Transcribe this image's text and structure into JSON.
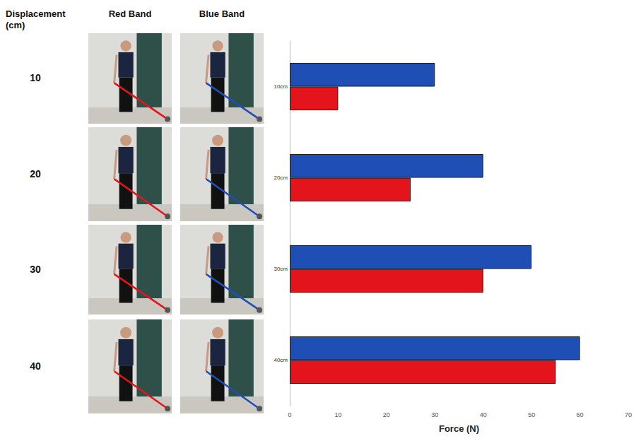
{
  "chart_data": {
    "type": "bar",
    "orientation": "horizontal",
    "categories": [
      "10cm",
      "20cm",
      "30cm",
      "40cm"
    ],
    "series": [
      {
        "name": "Blue Band",
        "color": "#1f4fb4",
        "values": [
          30,
          40,
          50,
          60
        ]
      },
      {
        "name": "Red Band",
        "color": "#e3141c",
        "values": [
          10,
          25,
          40,
          55
        ]
      }
    ],
    "x_label": "Force (N)",
    "xlim": [
      0,
      70
    ],
    "xticks": [
      0,
      10,
      20,
      30,
      40,
      50,
      60,
      70
    ],
    "grid": false
  },
  "photo_panel": {
    "row_header": "Displacement (cm)",
    "columns": [
      "Red Band",
      "Blue Band"
    ],
    "rows": [
      10,
      20,
      30,
      40
    ]
  }
}
